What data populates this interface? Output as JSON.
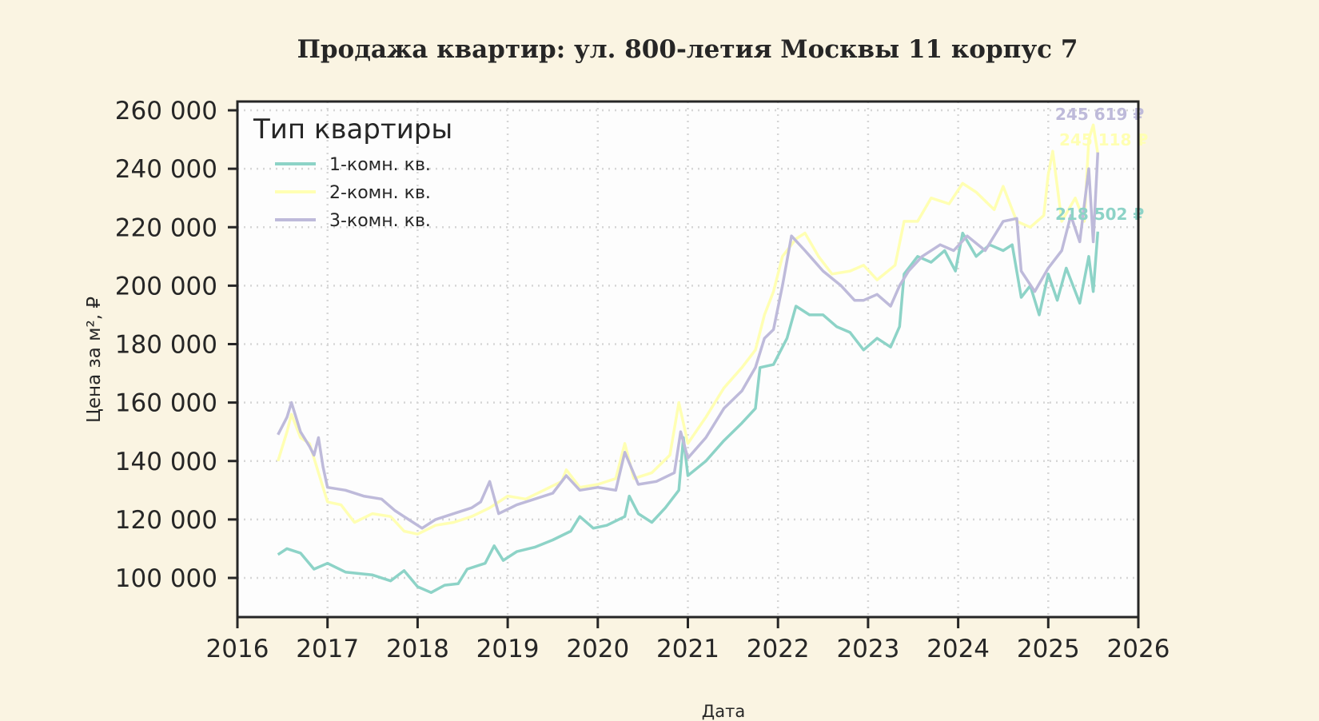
{
  "chart": {
    "title": "Продажа квартир: ул. 800-летия Москвы 11 корпус 7",
    "xlabel": "Дата",
    "ylabel": "Цена за м², ₽",
    "legend_title": "Тип квартиры",
    "colors": {
      "background": "#faf4e2",
      "plot_bg": "#fdfdfd",
      "axis": "#262626",
      "grid": "#d9d9d9"
    }
  },
  "chart_data": {
    "type": "line",
    "title": "Продажа квартир: ул. 800-летия Москвы 11 корпус 7",
    "xlabel": "Дата",
    "ylabel": "Цена за м², ₽",
    "xlim": [
      2016,
      2026
    ],
    "ylim": [
      86000,
      262000
    ],
    "x_ticks": [
      "2016",
      "2017",
      "2018",
      "2019",
      "2020",
      "2021",
      "2022",
      "2023",
      "2024",
      "2025",
      "2026"
    ],
    "y_ticks": [
      "100 000",
      "120 000",
      "140 000",
      "160 000",
      "180 000",
      "200 000",
      "220 000",
      "240 000",
      "260 000"
    ],
    "y_tick_values": [
      100000,
      120000,
      140000,
      160000,
      180000,
      200000,
      220000,
      240000,
      260000
    ],
    "grid": true,
    "legend_position": "upper left",
    "series": [
      {
        "name": "1-комн. кв.",
        "color": "#8dd3c7",
        "end_label": "218 502 ₽",
        "points": [
          [
            2016.45,
            108000
          ],
          [
            2016.55,
            110000
          ],
          [
            2016.7,
            108500
          ],
          [
            2016.85,
            103000
          ],
          [
            2017.0,
            105000
          ],
          [
            2017.2,
            102000
          ],
          [
            2017.5,
            101000
          ],
          [
            2017.7,
            99000
          ],
          [
            2017.85,
            102500
          ],
          [
            2018.0,
            97000
          ],
          [
            2018.15,
            95000
          ],
          [
            2018.3,
            97500
          ],
          [
            2018.45,
            98000
          ],
          [
            2018.55,
            103000
          ],
          [
            2018.75,
            105000
          ],
          [
            2018.85,
            111000
          ],
          [
            2018.95,
            106000
          ],
          [
            2019.1,
            109000
          ],
          [
            2019.3,
            110500
          ],
          [
            2019.5,
            113000
          ],
          [
            2019.7,
            116000
          ],
          [
            2019.8,
            121000
          ],
          [
            2019.95,
            117000
          ],
          [
            2020.1,
            118000
          ],
          [
            2020.3,
            121000
          ],
          [
            2020.35,
            128000
          ],
          [
            2020.45,
            122000
          ],
          [
            2020.6,
            119000
          ],
          [
            2020.75,
            124000
          ],
          [
            2020.9,
            130000
          ],
          [
            2020.95,
            148000
          ],
          [
            2021.0,
            135000
          ],
          [
            2021.2,
            140000
          ],
          [
            2021.4,
            147000
          ],
          [
            2021.6,
            153000
          ],
          [
            2021.75,
            158000
          ],
          [
            2021.8,
            172000
          ],
          [
            2021.95,
            173000
          ],
          [
            2022.1,
            182000
          ],
          [
            2022.2,
            193000
          ],
          [
            2022.35,
            190000
          ],
          [
            2022.5,
            190000
          ],
          [
            2022.65,
            186000
          ],
          [
            2022.8,
            184000
          ],
          [
            2022.95,
            178000
          ],
          [
            2023.1,
            182000
          ],
          [
            2023.25,
            179000
          ],
          [
            2023.35,
            186000
          ],
          [
            2023.4,
            204000
          ],
          [
            2023.55,
            210000
          ],
          [
            2023.7,
            208000
          ],
          [
            2023.85,
            212000
          ],
          [
            2023.97,
            205000
          ],
          [
            2024.05,
            218000
          ],
          [
            2024.2,
            210000
          ],
          [
            2024.35,
            214000
          ],
          [
            2024.5,
            212000
          ],
          [
            2024.6,
            214000
          ],
          [
            2024.7,
            196000
          ],
          [
            2024.8,
            200000
          ],
          [
            2024.9,
            190000
          ],
          [
            2025.0,
            204000
          ],
          [
            2025.1,
            195000
          ],
          [
            2025.2,
            206000
          ],
          [
            2025.35,
            194000
          ],
          [
            2025.45,
            210000
          ],
          [
            2025.5,
            198000
          ],
          [
            2025.55,
            218502
          ]
        ]
      },
      {
        "name": "2-комн. кв.",
        "color": "#ffffb3",
        "end_label": "245 118 ₽",
        "points": [
          [
            2016.45,
            140000
          ],
          [
            2016.55,
            150000
          ],
          [
            2016.6,
            156000
          ],
          [
            2016.7,
            148000
          ],
          [
            2016.8,
            146000
          ],
          [
            2016.9,
            136000
          ],
          [
            2017.0,
            126000
          ],
          [
            2017.15,
            125000
          ],
          [
            2017.3,
            119000
          ],
          [
            2017.5,
            122000
          ],
          [
            2017.7,
            121000
          ],
          [
            2017.85,
            116000
          ],
          [
            2018.0,
            115000
          ],
          [
            2018.2,
            118000
          ],
          [
            2018.4,
            119000
          ],
          [
            2018.6,
            121000
          ],
          [
            2018.8,
            124000
          ],
          [
            2019.0,
            128000
          ],
          [
            2019.2,
            127000
          ],
          [
            2019.4,
            130000
          ],
          [
            2019.6,
            133000
          ],
          [
            2019.65,
            137000
          ],
          [
            2019.8,
            131000
          ],
          [
            2020.0,
            132000
          ],
          [
            2020.2,
            134000
          ],
          [
            2020.3,
            146000
          ],
          [
            2020.4,
            134000
          ],
          [
            2020.6,
            136000
          ],
          [
            2020.8,
            142000
          ],
          [
            2020.9,
            160000
          ],
          [
            2021.0,
            146000
          ],
          [
            2021.2,
            155000
          ],
          [
            2021.4,
            165000
          ],
          [
            2021.6,
            172000
          ],
          [
            2021.75,
            178000
          ],
          [
            2021.85,
            190000
          ],
          [
            2021.95,
            198000
          ],
          [
            2022.05,
            210000
          ],
          [
            2022.2,
            216000
          ],
          [
            2022.3,
            218000
          ],
          [
            2022.45,
            210000
          ],
          [
            2022.6,
            204000
          ],
          [
            2022.8,
            205000
          ],
          [
            2022.95,
            207000
          ],
          [
            2023.1,
            202000
          ],
          [
            2023.3,
            207000
          ],
          [
            2023.4,
            222000
          ],
          [
            2023.55,
            222000
          ],
          [
            2023.7,
            230000
          ],
          [
            2023.9,
            228000
          ],
          [
            2024.05,
            235000
          ],
          [
            2024.2,
            232000
          ],
          [
            2024.4,
            226000
          ],
          [
            2024.5,
            234000
          ],
          [
            2024.65,
            222000
          ],
          [
            2024.8,
            220000
          ],
          [
            2024.95,
            224000
          ],
          [
            2025.0,
            238000
          ],
          [
            2025.05,
            246000
          ],
          [
            2025.15,
            222000
          ],
          [
            2025.3,
            230000
          ],
          [
            2025.4,
            222000
          ],
          [
            2025.45,
            250000
          ],
          [
            2025.5,
            255000
          ],
          [
            2025.55,
            245118
          ]
        ]
      },
      {
        "name": "3-комн. кв.",
        "color": "#bebada",
        "end_label": "245 619 ₽",
        "points": [
          [
            2016.45,
            149000
          ],
          [
            2016.55,
            155000
          ],
          [
            2016.6,
            160000
          ],
          [
            2016.7,
            150000
          ],
          [
            2016.8,
            145000
          ],
          [
            2016.85,
            142000
          ],
          [
            2016.9,
            148000
          ],
          [
            2016.95,
            138000
          ],
          [
            2017.0,
            131000
          ],
          [
            2017.2,
            130000
          ],
          [
            2017.4,
            128000
          ],
          [
            2017.6,
            127000
          ],
          [
            2017.75,
            123000
          ],
          [
            2017.9,
            120000
          ],
          [
            2018.05,
            117000
          ],
          [
            2018.2,
            120000
          ],
          [
            2018.4,
            122000
          ],
          [
            2018.6,
            124000
          ],
          [
            2018.7,
            126000
          ],
          [
            2018.8,
            133000
          ],
          [
            2018.9,
            122000
          ],
          [
            2019.1,
            125000
          ],
          [
            2019.3,
            127000
          ],
          [
            2019.5,
            129000
          ],
          [
            2019.65,
            135000
          ],
          [
            2019.8,
            130000
          ],
          [
            2020.0,
            131000
          ],
          [
            2020.2,
            130000
          ],
          [
            2020.3,
            143000
          ],
          [
            2020.45,
            132000
          ],
          [
            2020.65,
            133000
          ],
          [
            2020.85,
            136000
          ],
          [
            2020.92,
            150000
          ],
          [
            2021.0,
            141000
          ],
          [
            2021.2,
            148000
          ],
          [
            2021.4,
            158000
          ],
          [
            2021.6,
            164000
          ],
          [
            2021.75,
            172000
          ],
          [
            2021.85,
            182000
          ],
          [
            2021.95,
            185000
          ],
          [
            2022.05,
            200000
          ],
          [
            2022.15,
            217000
          ],
          [
            2022.3,
            212000
          ],
          [
            2022.5,
            205000
          ],
          [
            2022.7,
            200000
          ],
          [
            2022.85,
            195000
          ],
          [
            2022.95,
            195000
          ],
          [
            2023.1,
            197000
          ],
          [
            2023.25,
            193000
          ],
          [
            2023.35,
            200000
          ],
          [
            2023.45,
            205000
          ],
          [
            2023.6,
            210000
          ],
          [
            2023.8,
            214000
          ],
          [
            2023.95,
            212000
          ],
          [
            2024.1,
            217000
          ],
          [
            2024.3,
            212000
          ],
          [
            2024.5,
            222000
          ],
          [
            2024.65,
            223000
          ],
          [
            2024.7,
            205000
          ],
          [
            2024.85,
            198000
          ],
          [
            2025.0,
            206000
          ],
          [
            2025.15,
            212000
          ],
          [
            2025.25,
            224000
          ],
          [
            2025.35,
            215000
          ],
          [
            2025.45,
            240000
          ],
          [
            2025.5,
            215000
          ],
          [
            2025.55,
            245619
          ]
        ]
      }
    ]
  }
}
